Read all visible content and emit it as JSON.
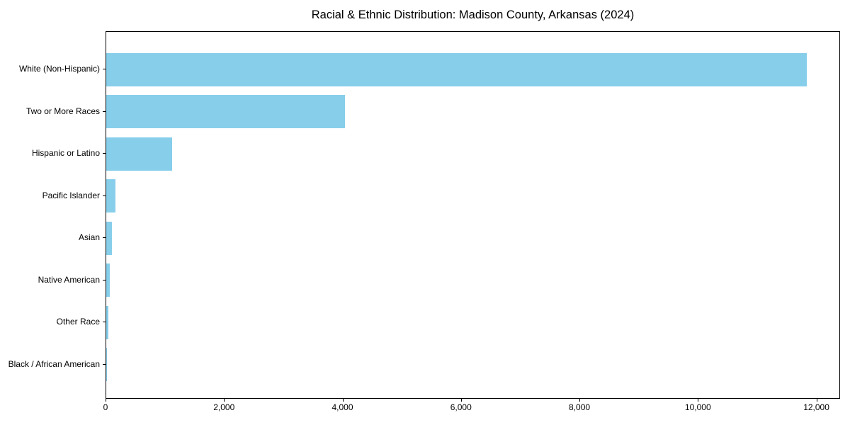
{
  "chart": {
    "title": "Racial & Ethnic Distribution: Madison County, Arkansas (2024)"
  },
  "chart_data": {
    "type": "bar",
    "orientation": "horizontal",
    "title": "Racial & Ethnic Distribution: Madison County, Arkansas (2024)",
    "categories": [
      "White (Non-Hispanic)",
      "Two or More Races",
      "Hispanic or Latino",
      "Pacific Islander",
      "Asian",
      "Native American",
      "Other Race",
      "Black / African American"
    ],
    "values": [
      11830,
      4025,
      1115,
      160,
      100,
      60,
      35,
      10
    ],
    "xlabel": "",
    "ylabel": "",
    "xlim": [
      0,
      12400
    ],
    "xticks": [
      0,
      2000,
      4000,
      6000,
      8000,
      10000,
      12000
    ],
    "xtick_labels": [
      "0",
      "2,000",
      "4,000",
      "6,000",
      "8,000",
      "10,000",
      "12,000"
    ],
    "bar_color": "#87CEEB",
    "grid": false,
    "legend": null
  }
}
